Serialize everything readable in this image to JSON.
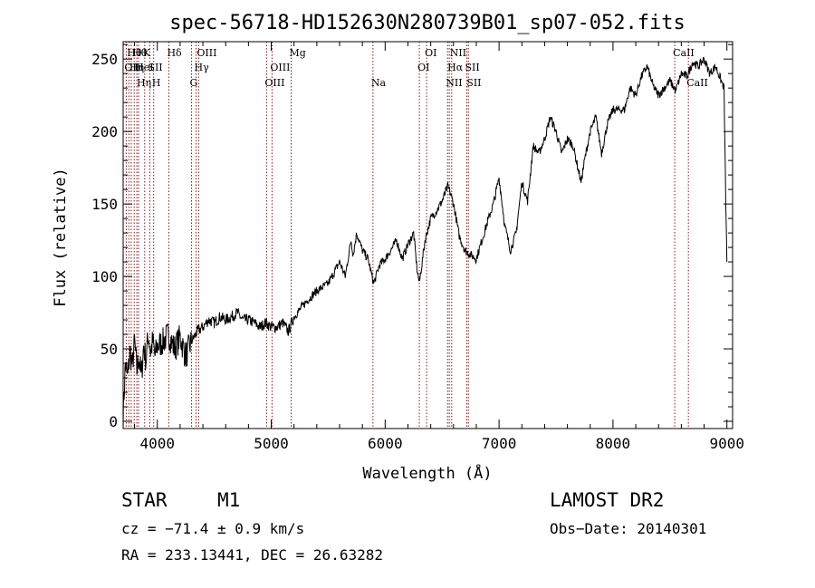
{
  "chart_data": {
    "type": "line",
    "title": "spec-56718-HD152630N280739B01_sp07-052.fits",
    "xlabel": "Wavelength (Å)",
    "ylabel": "Flux (relative)",
    "xlim": [
      3700,
      9050
    ],
    "ylim": [
      -5,
      262
    ],
    "xticks": [
      4000,
      5000,
      6000,
      7000,
      8000,
      9000
    ],
    "yticks": [
      0,
      50,
      100,
      150,
      200,
      250
    ],
    "grid": false,
    "line_color": "#000000",
    "marker_color": "#8b1a1a",
    "series": [
      {
        "x": [
          3700,
          3720,
          3740,
          3760,
          3780,
          3800,
          3820,
          3840,
          3860,
          3880,
          3900,
          3920,
          3940,
          3960,
          3980,
          4000,
          4050,
          4100,
          4150,
          4200,
          4250,
          4300,
          4350,
          4400,
          4450,
          4500,
          4550,
          4600,
          4650,
          4700,
          4750,
          4800,
          4850,
          4900,
          4950,
          5000,
          5050,
          5100,
          5150,
          5200,
          5300,
          5400,
          5500,
          5600,
          5650,
          5700,
          5720,
          5750,
          5800,
          5850,
          5900,
          5950,
          6000,
          6050,
          6100,
          6150,
          6200,
          6250,
          6280,
          6300,
          6350,
          6400,
          6450,
          6500,
          6550,
          6570,
          6600,
          6650,
          6700,
          6750,
          6800,
          6850,
          6900,
          6950,
          7000,
          7050,
          7100,
          7150,
          7200,
          7250,
          7300,
          7350,
          7400,
          7450,
          7500,
          7550,
          7600,
          7650,
          7700,
          7720,
          7750,
          7800,
          7850,
          7900,
          7950,
          8000,
          8050,
          8100,
          8150,
          8200,
          8250,
          8300,
          8350,
          8400,
          8450,
          8500,
          8550,
          8600,
          8650,
          8700,
          8750,
          8800,
          8850,
          8900,
          8950,
          8975,
          8990,
          9000
        ],
        "y": [
          5,
          40,
          30,
          48,
          38,
          55,
          35,
          45,
          30,
          52,
          42,
          60,
          48,
          55,
          45,
          52,
          55,
          60,
          50,
          58,
          45,
          55,
          62,
          65,
          70,
          68,
          72,
          70,
          72,
          75,
          70,
          70,
          68,
          65,
          68,
          65,
          65,
          68,
          62,
          72,
          82,
          90,
          95,
          110,
          100,
          125,
          115,
          130,
          118,
          112,
          95,
          108,
          112,
          118,
          125,
          112,
          122,
          130,
          105,
          95,
          125,
          140,
          145,
          152,
          162,
          158,
          150,
          128,
          118,
          115,
          112,
          125,
          138,
          150,
          168,
          135,
          118,
          130,
          165,
          152,
          190,
          185,
          195,
          210,
          200,
          185,
          195,
          190,
          172,
          165,
          180,
          200,
          210,
          185,
          205,
          215,
          215,
          215,
          230,
          225,
          238,
          245,
          232,
          225,
          230,
          235,
          228,
          240,
          238,
          248,
          245,
          250,
          240,
          245,
          235,
          230,
          150,
          110
        ]
      }
    ],
    "lines": [
      {
        "x": 3727,
        "label": "OII",
        "row": 2
      },
      {
        "x": 3750,
        "label": "Hθ",
        "row": 1
      },
      {
        "x": 3771,
        "label": "Hη",
        "row": 2
      },
      {
        "x": 3797,
        "label": "Hθ",
        "row": 1
      },
      {
        "x": 3820,
        "label": "HeI",
        "row": 2
      },
      {
        "x": 3835,
        "label": "Hη",
        "row": 3
      },
      {
        "x": 3889,
        "label": "K",
        "row": 1
      },
      {
        "x": 3934,
        "label": "SII",
        "row": 2
      },
      {
        "x": 3968,
        "label": "H",
        "row": 3
      },
      {
        "x": 4101,
        "label": "Hδ",
        "row": 1
      },
      {
        "x": 4300,
        "label": "G",
        "row": 3
      },
      {
        "x": 4340,
        "label": "Hγ",
        "row": 2
      },
      {
        "x": 4363,
        "label": "OIII",
        "row": 1
      },
      {
        "x": 4959,
        "label": "OIII",
        "row": 3
      },
      {
        "x": 5007,
        "label": "OIII",
        "row": 2
      },
      {
        "x": 5175,
        "label": "Mg",
        "row": 1
      },
      {
        "x": 5893,
        "label": "Na",
        "row": 3
      },
      {
        "x": 6300,
        "label": "OI",
        "row": 2
      },
      {
        "x": 6364,
        "label": "OI",
        "row": 1
      },
      {
        "x": 6548,
        "label": "NII",
        "row": 3
      },
      {
        "x": 6563,
        "label": "Hα",
        "row": 2
      },
      {
        "x": 6584,
        "label": "NII",
        "row": 1
      },
      {
        "x": 6717,
        "label": "SII",
        "row": 2
      },
      {
        "x": 6731,
        "label": "SII",
        "row": 3
      },
      {
        "x": 8542,
        "label": "CaII",
        "row": 1
      },
      {
        "x": 8662,
        "label": "CaII",
        "row": 3
      }
    ]
  },
  "info": {
    "object_class": "STAR",
    "subclass": "M1",
    "survey": "LAMOST DR2",
    "redshift": "cz = −71.4 ± 0.9 km/s",
    "obs_date": "Obs−Date: 20140301",
    "coords": "RA = 233.13441, DEC =  26.63282"
  }
}
